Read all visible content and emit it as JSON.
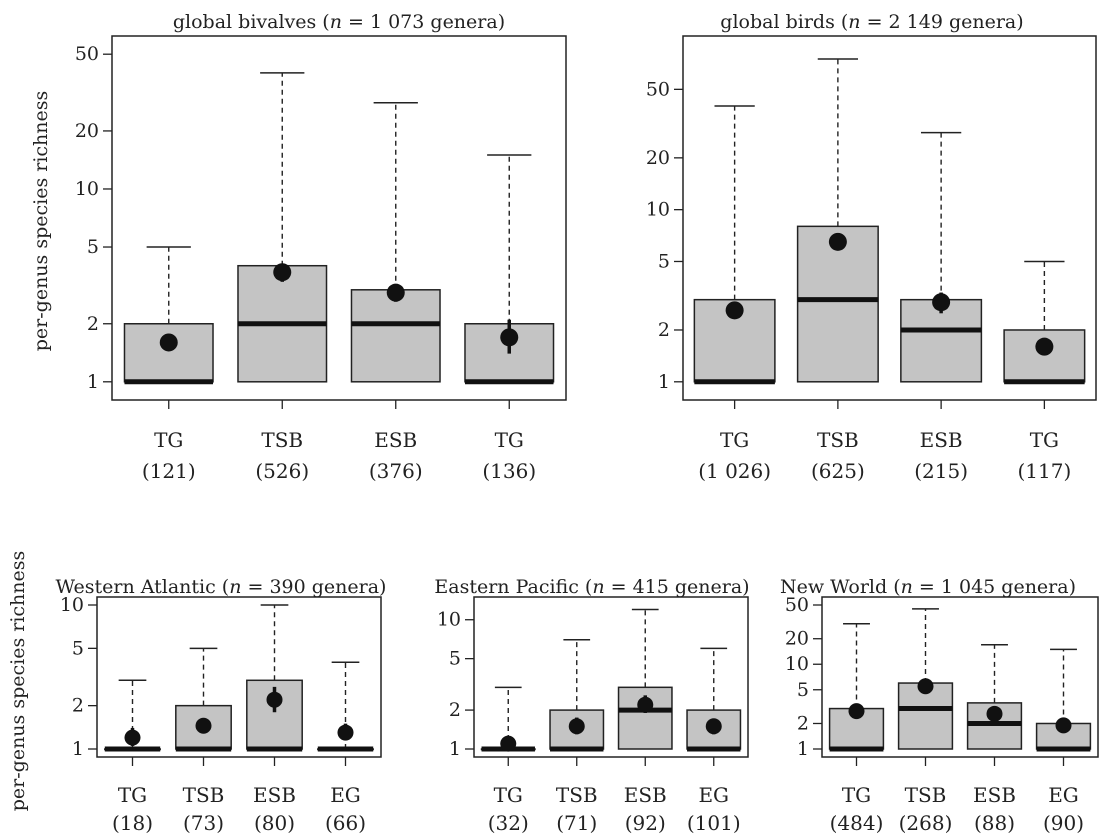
{
  "figure": {
    "ylabel": "per-genus species richness",
    "colors": {
      "box_fill": "#c4c4c4",
      "stroke": "#222222",
      "median": "#111111",
      "mean": "#111111"
    }
  },
  "chart_data": [
    {
      "type": "box",
      "title_prefix": "global bivalves (",
      "title_n": "n",
      "title_suffix": " = 1 073 genera)",
      "yscale": "log",
      "ylim": [
        1,
        50
      ],
      "yticks": [
        1,
        2,
        5,
        10,
        20,
        50
      ],
      "ylabel": "per-genus species richness",
      "categories": [
        {
          "name": "TG",
          "count": "(121)",
          "q1": 1,
          "median": 1,
          "q3": 2,
          "whisker_low": 1,
          "whisker_high": 5,
          "mean": 1.6,
          "mean_lo": 1.5,
          "mean_hi": 1.7
        },
        {
          "name": "TSB",
          "count": "(526)",
          "q1": 1,
          "median": 2,
          "q3": 4,
          "whisker_low": 1,
          "whisker_high": 40,
          "mean": 3.7,
          "mean_lo": 3.3,
          "mean_hi": 4.1
        },
        {
          "name": "ESB",
          "count": "(376)",
          "q1": 1,
          "median": 2,
          "q3": 3,
          "whisker_low": 1,
          "whisker_high": 28,
          "mean": 2.9,
          "mean_lo": 2.6,
          "mean_hi": 3.2
        },
        {
          "name": "TG",
          "count": "(136)",
          "q1": 1,
          "median": 1,
          "q3": 2,
          "whisker_low": 1,
          "whisker_high": 15,
          "mean": 1.7,
          "mean_lo": 1.4,
          "mean_hi": 2.1
        }
      ]
    },
    {
      "type": "box",
      "title_prefix": "global birds (",
      "title_n": "n",
      "title_suffix": " = 2 149 genera)",
      "yscale": "log",
      "ylim": [
        1,
        80
      ],
      "yticks": [
        1,
        2,
        5,
        10,
        20,
        50
      ],
      "ylabel": "",
      "categories": [
        {
          "name": "TG",
          "count": "(1 026)",
          "q1": 1,
          "median": 1,
          "q3": 3,
          "whisker_low": 1,
          "whisker_high": 40,
          "mean": 2.6,
          "mean_lo": 2.5,
          "mean_hi": 2.7
        },
        {
          "name": "TSB",
          "count": "(625)",
          "q1": 1,
          "median": 3,
          "q3": 8,
          "whisker_low": 1,
          "whisker_high": 75,
          "mean": 6.5,
          "mean_lo": 6.0,
          "mean_hi": 7.0
        },
        {
          "name": "ESB",
          "count": "(215)",
          "q1": 1,
          "median": 2,
          "q3": 3,
          "whisker_low": 1,
          "whisker_high": 28,
          "mean": 2.9,
          "mean_lo": 2.5,
          "mean_hi": 3.3
        },
        {
          "name": "TG",
          "count": "(117)",
          "q1": 1,
          "median": 1,
          "q3": 2,
          "whisker_low": 1,
          "whisker_high": 5,
          "mean": 1.6,
          "mean_lo": 1.5,
          "mean_hi": 1.7
        }
      ]
    },
    {
      "type": "box",
      "title_prefix": "Western Atlantic (",
      "title_n": "n",
      "title_suffix": " = 390 genera)",
      "yscale": "log",
      "ylim": [
        1,
        10
      ],
      "yticks": [
        1,
        2,
        5,
        10
      ],
      "ylabel": "per-genus species richness",
      "categories": [
        {
          "name": "TG",
          "count": "(18)",
          "q1": 1,
          "median": 1,
          "q3": 1,
          "whisker_low": 1,
          "whisker_high": 3,
          "mean": 1.2,
          "mean_lo": 1.05,
          "mean_hi": 1.4
        },
        {
          "name": "TSB",
          "count": "(73)",
          "q1": 1,
          "median": 1,
          "q3": 2,
          "whisker_low": 1,
          "whisker_high": 5,
          "mean": 1.45,
          "mean_lo": 1.3,
          "mean_hi": 1.6
        },
        {
          "name": "ESB",
          "count": "(80)",
          "q1": 1,
          "median": 1,
          "q3": 3,
          "whisker_low": 1,
          "whisker_high": 10,
          "mean": 2.2,
          "mean_lo": 1.8,
          "mean_hi": 2.7
        },
        {
          "name": "EG",
          "count": "(66)",
          "q1": 1,
          "median": 1,
          "q3": 1,
          "whisker_low": 1,
          "whisker_high": 4,
          "mean": 1.3,
          "mean_lo": 1.15,
          "mean_hi": 1.5
        }
      ]
    },
    {
      "type": "box",
      "title_prefix": "Eastern Pacific (",
      "title_n": "n",
      "title_suffix": " = 415 genera)",
      "yscale": "log",
      "ylim": [
        1,
        13
      ],
      "yticks": [
        1,
        2,
        5,
        10
      ],
      "ylabel": "",
      "categories": [
        {
          "name": "TG",
          "count": "(32)",
          "q1": 1,
          "median": 1,
          "q3": 1,
          "whisker_low": 1,
          "whisker_high": 3,
          "mean": 1.1,
          "mean_lo": 1.0,
          "mean_hi": 1.2
        },
        {
          "name": "TSB",
          "count": "(71)",
          "q1": 1,
          "median": 1,
          "q3": 2,
          "whisker_low": 1,
          "whisker_high": 7,
          "mean": 1.5,
          "mean_lo": 1.3,
          "mean_hi": 1.75
        },
        {
          "name": "ESB",
          "count": "(92)",
          "q1": 1,
          "median": 2,
          "q3": 3,
          "whisker_low": 1,
          "whisker_high": 12,
          "mean": 2.2,
          "mean_lo": 1.9,
          "mean_hi": 2.6
        },
        {
          "name": "EG",
          "count": "(101)",
          "q1": 1,
          "median": 1,
          "q3": 2,
          "whisker_low": 1,
          "whisker_high": 6,
          "mean": 1.5,
          "mean_lo": 1.3,
          "mean_hi": 1.7
        }
      ]
    },
    {
      "type": "box",
      "title_prefix": "New World (",
      "title_n": "n",
      "title_suffix": " = 1 045 genera)",
      "yscale": "log",
      "ylim": [
        1,
        50
      ],
      "yticks": [
        1,
        2,
        5,
        10,
        20,
        50
      ],
      "ylabel": "",
      "categories": [
        {
          "name": "TG",
          "count": "(484)",
          "q1": 1,
          "median": 1,
          "q3": 3,
          "whisker_low": 1,
          "whisker_high": 30,
          "mean": 2.8,
          "mean_lo": 2.6,
          "mean_hi": 3.0
        },
        {
          "name": "TSB",
          "count": "(268)",
          "q1": 1,
          "median": 3,
          "q3": 6,
          "whisker_low": 1,
          "whisker_high": 45,
          "mean": 5.5,
          "mean_lo": 4.8,
          "mean_hi": 6.3
        },
        {
          "name": "ESB",
          "count": "(88)",
          "q1": 1,
          "median": 2,
          "q3": 3.5,
          "whisker_low": 1,
          "whisker_high": 17,
          "mean": 2.6,
          "mean_lo": 2.2,
          "mean_hi": 3.1
        },
        {
          "name": "EG",
          "count": "(90)",
          "q1": 1,
          "median": 1,
          "q3": 2,
          "whisker_low": 1,
          "whisker_high": 15,
          "mean": 1.9,
          "mean_lo": 1.6,
          "mean_hi": 2.2
        }
      ]
    }
  ]
}
